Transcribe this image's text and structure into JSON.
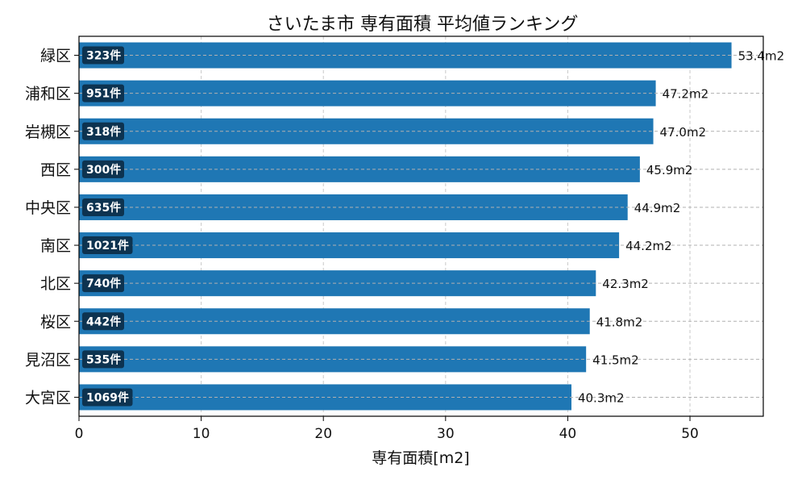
{
  "chart_data": {
    "type": "bar",
    "orientation": "horizontal",
    "title": "さいたま市 専有面積 平均値ランキング",
    "xlabel": "専有面積[m2]",
    "ylabel": "",
    "xlim": [
      0,
      56
    ],
    "xticks": [
      0,
      10,
      20,
      30,
      40,
      50
    ],
    "grid": true,
    "bar_color": "#1f77b4",
    "badge_color": "#0d3350",
    "categories": [
      "緑区",
      "浦和区",
      "岩槻区",
      "西区",
      "中央区",
      "南区",
      "北区",
      "桜区",
      "見沼区",
      "大宮区"
    ],
    "values": [
      53.4,
      47.2,
      47.0,
      45.9,
      44.9,
      44.2,
      42.3,
      41.8,
      41.5,
      40.3
    ],
    "value_labels": [
      "53.4m2",
      "47.2m2",
      "47.0m2",
      "45.9m2",
      "44.9m2",
      "44.2m2",
      "42.3m2",
      "41.8m2",
      "41.5m2",
      "40.3m2"
    ],
    "counts": [
      "323件",
      "951件",
      "318件",
      "300件",
      "635件",
      "1021件",
      "740件",
      "442件",
      "535件",
      "1069件"
    ]
  }
}
